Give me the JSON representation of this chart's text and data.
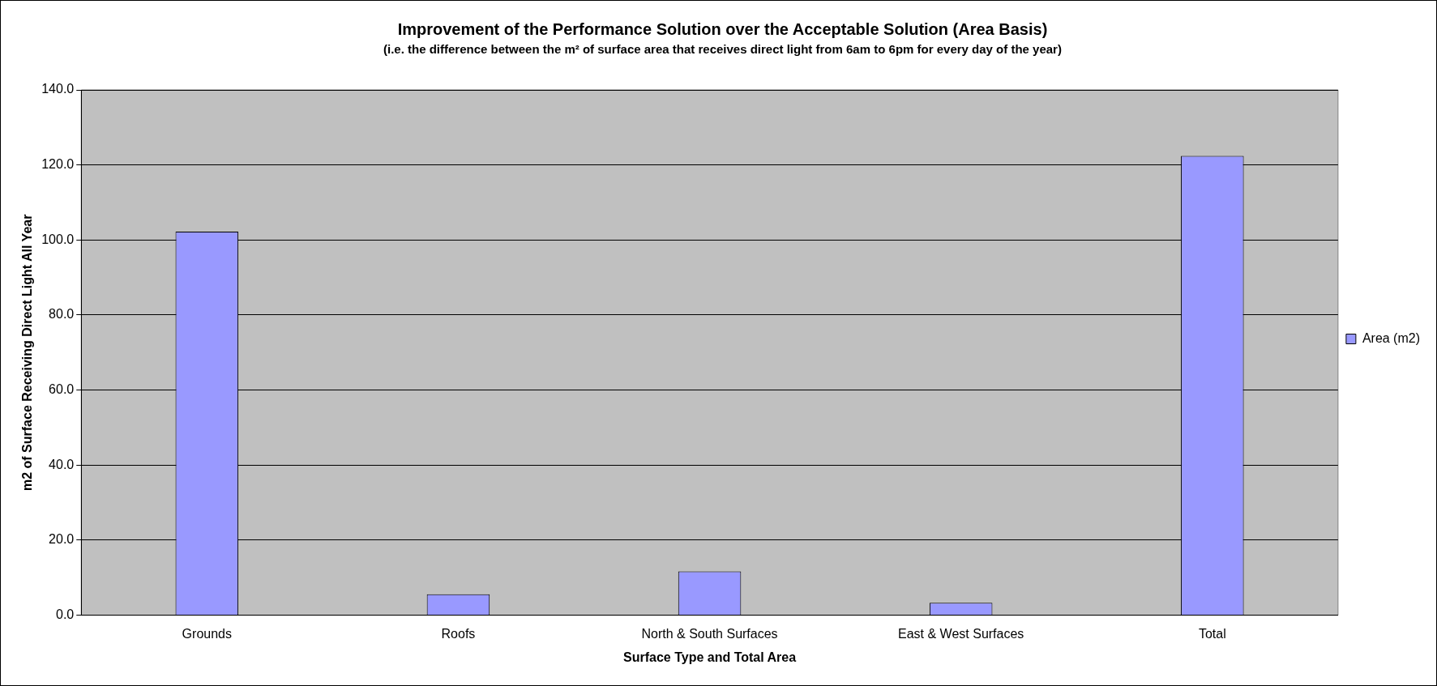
{
  "chart_data": {
    "type": "bar",
    "title": "Improvement of the Performance Solution over the Acceptable Solution (Area Basis)",
    "subtitle": "(i.e. the difference between the m² of surface area that receives direct light from 6am to 6pm for every day of the year)",
    "xlabel": "Surface Type and Total Area",
    "ylabel": "m2 of Surface Receiving Direct Light All Year",
    "categories": [
      "Grounds",
      "Roofs",
      "North & South Surfaces",
      "East & West Surfaces",
      "Total"
    ],
    "series": [
      {
        "name": "Area (m2)",
        "color": "#9999ff",
        "values": [
          102.2,
          5.6,
          11.7,
          3.3,
          122.4
        ]
      }
    ],
    "ylim": [
      0,
      140
    ],
    "yticks": [
      {
        "value": 0,
        "label": "0.0"
      },
      {
        "value": 20,
        "label": "20.0"
      },
      {
        "value": 40,
        "label": "40.0"
      },
      {
        "value": 60,
        "label": "60.0"
      },
      {
        "value": 80,
        "label": "80.0"
      },
      {
        "value": 100,
        "label": "100.0"
      },
      {
        "value": 120,
        "label": "120.0"
      },
      {
        "value": 140,
        "label": "140.0"
      }
    ],
    "grid": "y",
    "legend": "right"
  }
}
